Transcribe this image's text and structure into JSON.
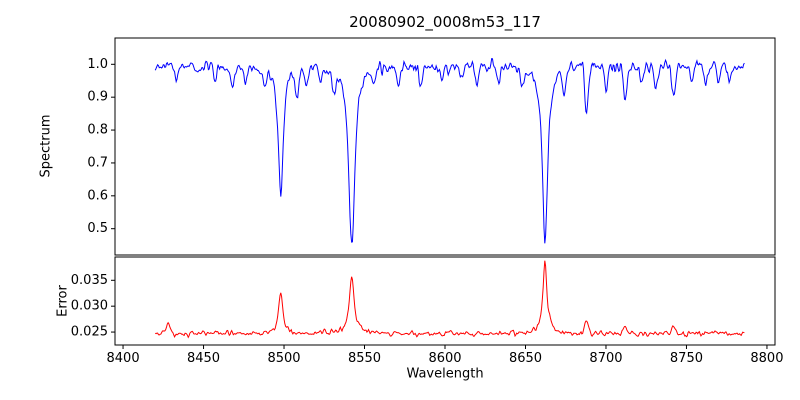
{
  "chart_data": {
    "type": "line",
    "title": "20080902_0008m53_117",
    "xlabel": "Wavelength",
    "legend": "off",
    "grid": "off",
    "x_start": 8420,
    "x_end": 8786,
    "x_step": 0.5,
    "noise_seed": 42,
    "xlim": [
      8395,
      8805
    ],
    "xticks": [
      "8400",
      "8450",
      "8500",
      "8550",
      "8600",
      "8650",
      "8700",
      "8750",
      "8800"
    ],
    "subplots": [
      {
        "ylabel": "Spectrum",
        "yticks": [
          "1.0",
          "0.9",
          "0.8",
          "0.7",
          "0.6",
          "0.5"
        ],
        "ylim": [
          0.42,
          1.08
        ],
        "line_color": "#0000ff",
        "series_name": "spectrum"
      },
      {
        "ylabel": "Error",
        "yticks": [
          "0.025",
          "0.030",
          "0.035"
        ],
        "ylim": [
          0.0225,
          0.0395
        ],
        "line_color": "#ff0000",
        "series_name": "error"
      }
    ],
    "spectrum": {
      "description": "Normalized stellar spectrum, continuum ~1.0 with noise; three deep Ca II triplet absorption lines",
      "continuum": 0.995,
      "noise_sigma": 0.013,
      "major_lines": [
        {
          "center": 8498.0,
          "depth": 0.4,
          "width": 1.8
        },
        {
          "center": 8542.1,
          "depth": 0.55,
          "width": 2.2
        },
        {
          "center": 8662.1,
          "depth": 0.54,
          "width": 2.0
        }
      ],
      "minor_lines": [
        [
          8433,
          0.04
        ],
        [
          8447,
          0.03
        ],
        [
          8457,
          0.04
        ],
        [
          8468,
          0.06
        ],
        [
          8476,
          0.04
        ],
        [
          8488,
          0.05
        ],
        [
          8508,
          0.09
        ],
        [
          8514,
          0.05
        ],
        [
          8523,
          0.04
        ],
        [
          8531,
          0.06
        ],
        [
          8556,
          0.04
        ],
        [
          8571,
          0.05
        ],
        [
          8585,
          0.07
        ],
        [
          8598,
          0.04
        ],
        [
          8610,
          0.04
        ],
        [
          8620,
          0.05
        ],
        [
          8633,
          0.05
        ],
        [
          8648,
          0.06
        ],
        [
          8674,
          0.09
        ],
        [
          8688,
          0.14
        ],
        [
          8700,
          0.07
        ],
        [
          8712,
          0.1
        ],
        [
          8722,
          0.05
        ],
        [
          8731,
          0.06
        ],
        [
          8742,
          0.09
        ],
        [
          8753,
          0.05
        ],
        [
          8762,
          0.06
        ],
        [
          8770,
          0.05
        ],
        [
          8777,
          0.04
        ]
      ]
    },
    "error": {
      "description": "Error spectrum, baseline ~0.025 with sharp peaks at the absorption-line wavelengths",
      "baseline": 0.0247,
      "noise_sigma": 0.0004,
      "peaks": [
        {
          "center": 8498.0,
          "height": 0.0078,
          "width": 1.6
        },
        {
          "center": 8542.1,
          "height": 0.0112,
          "width": 1.8
        },
        {
          "center": 8662.1,
          "height": 0.0135,
          "width": 1.6
        }
      ],
      "minor_peaks": [
        [
          8428,
          0.002
        ],
        [
          8688,
          0.0022
        ],
        [
          8712,
          0.0013
        ],
        [
          8742,
          0.0012
        ]
      ]
    }
  }
}
